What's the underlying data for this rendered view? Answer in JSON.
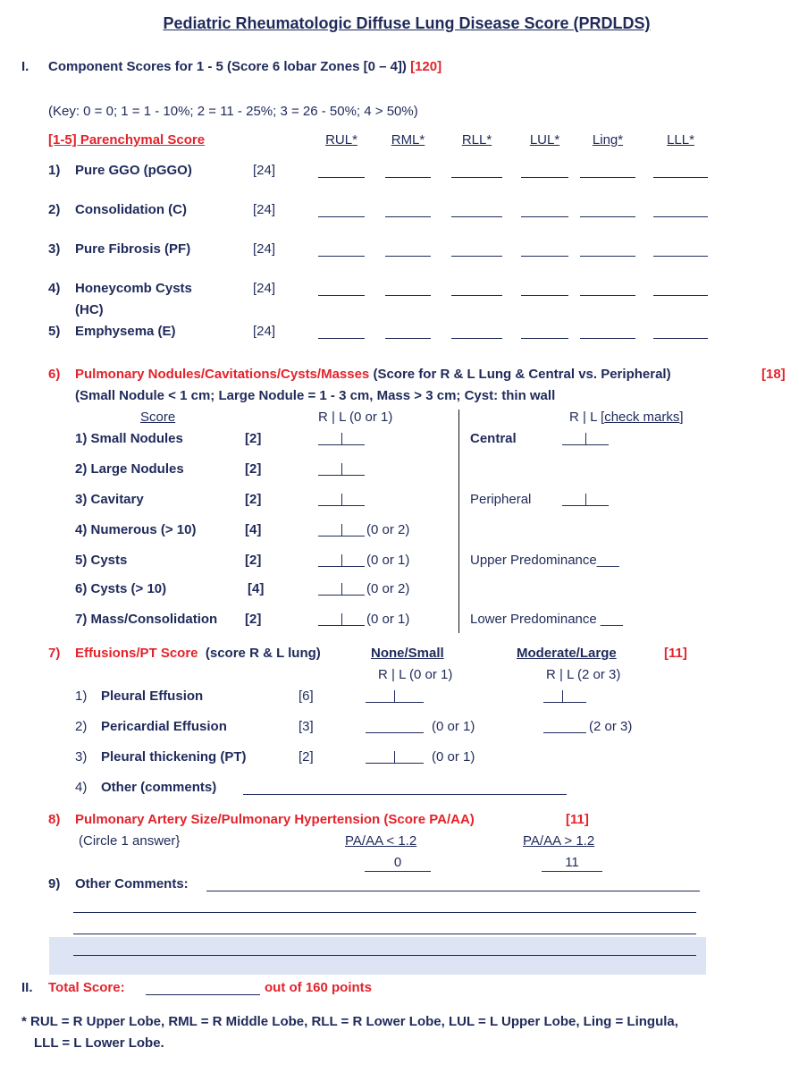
{
  "title": "Pediatric Rheumatologic Diffuse Lung Disease Score (PRDLDS)",
  "section1": {
    "numeral": "I.",
    "heading": "Component Scores for 1 - 5 (Score 6 lobar Zones [0 – 4])",
    "max": "[120]",
    "key": "(Key: 0 = 0; 1 = 1 - 10%; 2 = 11 - 25%; 3 = 26 - 50%; 4 > 50%)",
    "parenchymal_label": "[1-5] Parenchymal Score",
    "columns": [
      "RUL*",
      "RML*",
      "RLL*",
      "LUL*",
      "Ling*",
      "LLL*"
    ],
    "rows": [
      {
        "num": "1)",
        "label": "Pure GGO (pGGO)",
        "max": "[24]"
      },
      {
        "num": "2)",
        "label": "Consolidation (C)",
        "max": "[24]"
      },
      {
        "num": "3)",
        "label": "Pure Fibrosis (PF)",
        "max": "[24]"
      },
      {
        "num": "4)",
        "label": "Honeycomb Cysts",
        "label2": "(HC)",
        "max": "[24]"
      },
      {
        "num": "5)",
        "label": "Emphysema (E)",
        "max": "[24]"
      }
    ]
  },
  "section6": {
    "num": "6)",
    "heading": "Pulmonary Nodules/Cavitations/Cysts/Masses",
    "heading_note": "(Score for R & L Lung & Central vs. Peripheral)",
    "max": "[18]",
    "subnote": "(Small Nodule < 1 cm; Large Nodule = 1 - 3 cm, Mass > 3 cm; Cyst: thin wall",
    "score_header": "Score",
    "rl_header": "R  |  L (0 or 1)",
    "rl_check_prefix": "R | L [",
    "rl_check_link": "check marks",
    "rl_check_suffix": "]",
    "rows": [
      {
        "label": "1)  Small Nodules",
        "max": "[2]",
        "note": ""
      },
      {
        "label": "2)  Large Nodules",
        "max": "[2]",
        "note": ""
      },
      {
        "label": "3)  Cavitary",
        "max": "[2]",
        "note": ""
      },
      {
        "label": "4) Numerous (> 10)",
        "max": "[4]",
        "note": "(0 or 2)"
      },
      {
        "label": "5) Cysts",
        "max": "[2]",
        "note": "(0 or 1)"
      },
      {
        "label": "6) Cysts (> 10)",
        "max": "[4]",
        "note": "(0 or 2)"
      },
      {
        "label": "7) Mass/Consolidation",
        "max": "[2]",
        "note": "(0 or 1)"
      }
    ],
    "right": {
      "central": "Central",
      "peripheral": "Peripheral",
      "upper": "Upper Predominance___",
      "lower": "Lower Predominance ___"
    }
  },
  "section7": {
    "num": "7)",
    "heading": "Effusions/PT Score",
    "note": "(score R & L lung)",
    "col1": "None/Small",
    "col2": "Moderate/Large",
    "max": "[11]",
    "col1_sub": "R | L  (0 or 1)",
    "col2_sub": "R | L  (2 or 3)",
    "rows": [
      {
        "num": "1)",
        "label": "Pleural Effusion",
        "max": "[6]",
        "note1": "",
        "note2": ""
      },
      {
        "num": "2)",
        "label": "Pericardial Effusion",
        "max": "[3]",
        "note1": "(0 or 1)",
        "note2": "(2 or 3)"
      },
      {
        "num": "3)",
        "label": "Pleural thickening (PT)",
        "max": "[2]",
        "note1": "(0 or 1)",
        "note2": ""
      }
    ],
    "other_num": "4)",
    "other_label": "Other (comments)"
  },
  "section8": {
    "num": "8)",
    "heading": "Pulmonary Artery Size/Pulmonary Hypertension (Score PA/AA)",
    "max": "[11]",
    "instruction": "(Circle 1 answer}",
    "opt1_label": "PA/AA < 1.2",
    "opt1_value": "0",
    "opt2_label": "PA/AA > 1.2",
    "opt2_value": "11"
  },
  "section9": {
    "num": "9)",
    "label": "Other Comments:"
  },
  "section2": {
    "numeral": "II.",
    "label": "Total Score:",
    "suffix": "out of 160 points"
  },
  "footnote": {
    "line1": "* RUL = R Upper Lobe, RML = R Middle Lobe, RLL = R Lower Lobe, LUL = L Upper Lobe, Ling = Lingula,",
    "line2": "LLL = L Lower Lobe."
  },
  "colors": {
    "text": "#1f2a5a",
    "red": "#e3232b",
    "shade": "#dde4f3"
  }
}
